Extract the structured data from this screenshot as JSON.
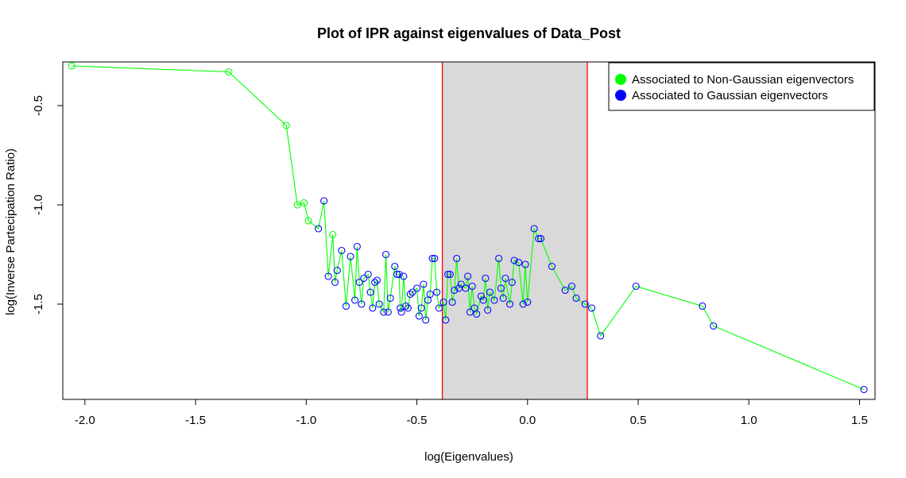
{
  "chart_data": {
    "type": "line",
    "title": "Plot of IPR against eigenvalues of  Data_Post",
    "xlabel": "log(Eigenvalues)",
    "ylabel": "log(Inverse Partecipation Ratio)",
    "xlim": [
      -2.1,
      1.57
    ],
    "ylim": [
      -1.98,
      -0.28
    ],
    "xticks": [
      -2.0,
      -1.5,
      -1.0,
      -0.5,
      0.0,
      0.5,
      1.0,
      1.5
    ],
    "xtick_labels": [
      "-2.0",
      "-1.5",
      "-1.0",
      "-0.5",
      "0.0",
      "0.5",
      "1.0",
      "1.5"
    ],
    "yticks": [
      -1.5,
      -1.0,
      -0.5
    ],
    "ytick_labels": [
      "-1.5",
      "-1.0",
      "-0.5"
    ],
    "grid": false,
    "legend_position": "top-right",
    "colors": {
      "non_gaussian": "#00ff00",
      "gaussian": "#0000ff",
      "band_fill": "#d9d9d9",
      "band_edges": "#ff0000"
    },
    "band": {
      "x_start": -0.385,
      "x_end": 0.27
    },
    "legend": [
      {
        "label": "Associated to Non-Gaussian eigenvectors",
        "color": "#00ff00"
      },
      {
        "label": "Associated to Gaussian eigenvectors",
        "color": "#0000ff"
      }
    ],
    "series": [
      {
        "name": "Associated to Non-Gaussian eigenvectors",
        "color": "#00ff00",
        "points": [
          [
            -2.06,
            -0.3
          ],
          [
            -1.35,
            -0.33
          ],
          [
            -1.09,
            -0.6
          ],
          [
            -1.04,
            -1.0
          ],
          [
            -1.01,
            -0.99
          ],
          [
            -0.99,
            -1.08
          ],
          [
            -0.88,
            -1.15
          ]
        ]
      },
      {
        "name": "Associated to Gaussian eigenvectors",
        "color": "#0000ff",
        "points": [
          [
            -0.945,
            -1.12
          ],
          [
            -0.92,
            -0.98
          ],
          [
            -0.9,
            -1.36
          ],
          [
            -0.87,
            -1.39
          ],
          [
            -0.86,
            -1.33
          ],
          [
            -0.84,
            -1.23
          ],
          [
            -0.82,
            -1.51
          ],
          [
            -0.8,
            -1.26
          ],
          [
            -0.78,
            -1.48
          ],
          [
            -0.77,
            -1.21
          ],
          [
            -0.76,
            -1.39
          ],
          [
            -0.75,
            -1.5
          ],
          [
            -0.74,
            -1.37
          ],
          [
            -0.72,
            -1.35
          ],
          [
            -0.71,
            -1.44
          ],
          [
            -0.7,
            -1.52
          ],
          [
            -0.69,
            -1.39
          ],
          [
            -0.68,
            -1.38
          ],
          [
            -0.67,
            -1.5
          ],
          [
            -0.65,
            -1.54
          ],
          [
            -0.64,
            -1.25
          ],
          [
            -0.63,
            -1.54
          ],
          [
            -0.62,
            -1.47
          ],
          [
            -0.6,
            -1.31
          ],
          [
            -0.59,
            -1.35
          ],
          [
            -0.58,
            -1.35
          ],
          [
            -0.575,
            -1.52
          ],
          [
            -0.57,
            -1.54
          ],
          [
            -0.56,
            -1.36
          ],
          [
            -0.55,
            -1.51
          ],
          [
            -0.54,
            -1.52
          ],
          [
            -0.53,
            -1.45
          ],
          [
            -0.52,
            -1.44
          ],
          [
            -0.5,
            -1.42
          ],
          [
            -0.49,
            -1.56
          ],
          [
            -0.48,
            -1.52
          ],
          [
            -0.47,
            -1.4
          ],
          [
            -0.46,
            -1.58
          ],
          [
            -0.45,
            -1.48
          ],
          [
            -0.44,
            -1.45
          ],
          [
            -0.43,
            -1.27
          ],
          [
            -0.42,
            -1.27
          ],
          [
            -0.41,
            -1.44
          ],
          [
            -0.4,
            -1.52
          ],
          [
            -0.38,
            -1.49
          ],
          [
            -0.37,
            -1.58
          ],
          [
            -0.36,
            -1.35
          ],
          [
            -0.35,
            -1.35
          ],
          [
            -0.34,
            -1.49
          ],
          [
            -0.33,
            -1.43
          ],
          [
            -0.32,
            -1.27
          ],
          [
            -0.31,
            -1.42
          ],
          [
            -0.3,
            -1.4
          ],
          [
            -0.28,
            -1.42
          ],
          [
            -0.27,
            -1.36
          ],
          [
            -0.26,
            -1.54
          ],
          [
            -0.25,
            -1.41
          ],
          [
            -0.24,
            -1.52
          ],
          [
            -0.23,
            -1.55
          ],
          [
            -0.21,
            -1.46
          ],
          [
            -0.2,
            -1.48
          ],
          [
            -0.19,
            -1.37
          ],
          [
            -0.18,
            -1.53
          ],
          [
            -0.17,
            -1.44
          ],
          [
            -0.15,
            -1.48
          ],
          [
            -0.13,
            -1.27
          ],
          [
            -0.12,
            -1.42
          ],
          [
            -0.11,
            -1.47
          ],
          [
            -0.1,
            -1.37
          ],
          [
            -0.08,
            -1.5
          ],
          [
            -0.07,
            -1.39
          ],
          [
            -0.06,
            -1.28
          ],
          [
            -0.04,
            -1.29
          ],
          [
            -0.02,
            -1.5
          ],
          [
            -0.01,
            -1.3
          ],
          [
            0.0,
            -1.49
          ],
          [
            0.03,
            -1.12
          ],
          [
            0.05,
            -1.17
          ],
          [
            0.06,
            -1.17
          ],
          [
            0.11,
            -1.31
          ],
          [
            0.17,
            -1.43
          ],
          [
            0.2,
            -1.41
          ],
          [
            0.22,
            -1.47
          ],
          [
            0.26,
            -1.5
          ],
          [
            0.29,
            -1.52
          ],
          [
            0.33,
            -1.66
          ],
          [
            0.49,
            -1.41
          ],
          [
            0.79,
            -1.51
          ],
          [
            0.84,
            -1.61
          ],
          [
            1.52,
            -1.93
          ]
        ]
      }
    ]
  }
}
